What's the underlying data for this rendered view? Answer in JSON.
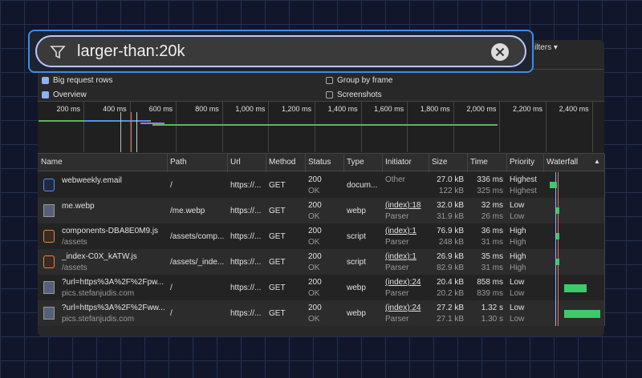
{
  "filter": {
    "value": "larger-than:20k"
  },
  "toolbar": {
    "more_filters": "ilters"
  },
  "options": [
    {
      "label": "Big request rows",
      "checked": true
    },
    {
      "label": "Group by frame",
      "checked": false
    },
    {
      "label": "Overview",
      "checked": true
    },
    {
      "label": "Screenshots",
      "checked": false
    }
  ],
  "overview": {
    "ticks": [
      "200 ms",
      "400 ms",
      "600 ms",
      "800 ms",
      "1,000 ms",
      "1,200 ms",
      "1,400 ms",
      "1,600 ms",
      "1,800 ms",
      "2,000 ms",
      "2,200 ms",
      "2,400 ms"
    ]
  },
  "table": {
    "columns": [
      "Name",
      "Path",
      "Url",
      "Method",
      "Status",
      "Type",
      "Initiator",
      "Size",
      "Time",
      "Priority",
      "Waterfall"
    ],
    "rows": [
      {
        "name": "webweekly.email",
        "sub": null,
        "path": "/",
        "url": "https://...",
        "method": "GET",
        "status": [
          "200",
          "OK"
        ],
        "type": "docum...",
        "initiator": [
          "Other",
          null
        ],
        "size": [
          "27.0 kB",
          "122 kB"
        ],
        "time": [
          "336 ms",
          "325 ms"
        ],
        "priority": [
          "Highest",
          "Highest"
        ]
      },
      {
        "name": "me.webp",
        "sub": null,
        "path": "/me.webp",
        "url": "https://...",
        "method": "GET",
        "status": [
          "200",
          "OK"
        ],
        "type": "webp",
        "initiator": [
          "(index):18",
          "Parser"
        ],
        "size": [
          "32.0 kB",
          "31.9 kB"
        ],
        "time": [
          "32 ms",
          "26 ms"
        ],
        "priority": [
          "Low",
          "Low"
        ]
      },
      {
        "name": "components-DBA8E0M9.js",
        "sub": "/assets",
        "path": "/assets/comp...",
        "url": "https://...",
        "method": "GET",
        "status": [
          "200",
          "OK"
        ],
        "type": "script",
        "initiator": [
          "(index):1",
          "Parser"
        ],
        "size": [
          "76.9 kB",
          "248 kB"
        ],
        "time": [
          "36 ms",
          "31 ms"
        ],
        "priority": [
          "High",
          "High"
        ]
      },
      {
        "name": "_index-C0X_kATW.js",
        "sub": "/assets",
        "path": "/assets/_inde...",
        "url": "https://...",
        "method": "GET",
        "status": [
          "200",
          "OK"
        ],
        "type": "script",
        "initiator": [
          "(index):1",
          "Parser"
        ],
        "size": [
          "26.9 kB",
          "82.9 kB"
        ],
        "time": [
          "35 ms",
          "31 ms"
        ],
        "priority": [
          "High",
          "High"
        ]
      },
      {
        "name": "?url=https%3A%2F%2Fpw...",
        "sub": "pics.stefanjudis.com",
        "path": "/",
        "url": "https://...",
        "method": "GET",
        "status": [
          "200",
          "OK"
        ],
        "type": "webp",
        "initiator": [
          "(index):24",
          "Parser"
        ],
        "size": [
          "20.4 kB",
          "20.2 kB"
        ],
        "time": [
          "858 ms",
          "839 ms"
        ],
        "priority": [
          "Low",
          "Low"
        ]
      },
      {
        "name": "?url=https%3A%2F%2Fww...",
        "sub": "pics.stefanjudis.com",
        "path": "/",
        "url": "https://...",
        "method": "GET",
        "status": [
          "200",
          "OK"
        ],
        "type": "webp",
        "initiator": [
          "(index):24",
          "Parser"
        ],
        "size": [
          "27.2 kB",
          "27.1 kB"
        ],
        "time": [
          "1.32 s",
          "1.30 s"
        ],
        "priority": [
          "Low",
          "Low"
        ]
      }
    ]
  }
}
